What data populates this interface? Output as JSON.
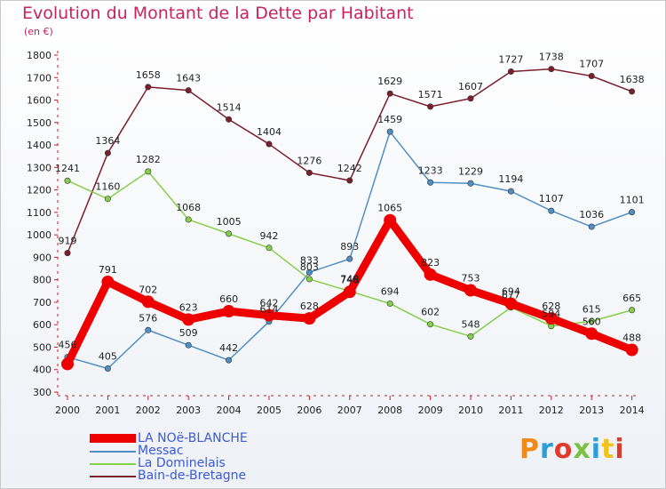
{
  "title": "Evolution du Montant de la Dette par Habitant",
  "unit": "(en €)",
  "logo": "Proxiti",
  "chart_data": {
    "type": "line",
    "title": "Evolution du Montant de la Dette par Habitant",
    "ylabel": "(en €)",
    "ylim": [
      300,
      1800
    ],
    "yticks": [
      300,
      400,
      500,
      600,
      700,
      800,
      900,
      1000,
      1100,
      1200,
      1300,
      1400,
      1500,
      1600,
      1700,
      1800
    ],
    "categories": [
      "2000",
      "2001",
      "2002",
      "2003",
      "2004",
      "2005",
      "2006",
      "2007",
      "2008",
      "2009",
      "2010",
      "2011",
      "2012",
      "2013",
      "2014"
    ],
    "grid": false,
    "legend_position": "bottom-left",
    "series": [
      {
        "name": "LA NOë-BLANCHE",
        "color": "#ee0000",
        "values": [
          425,
          791,
          702,
          623,
          660,
          642,
          628,
          746,
          1065,
          823,
          753,
          694,
          628,
          560,
          488
        ],
        "labels": [
          "",
          "791",
          "702",
          "623",
          "660",
          "642",
          "628",
          "746",
          "1065",
          "823",
          "753",
          "694",
          "628",
          "560",
          "488"
        ]
      },
      {
        "name": "Messac",
        "color": "#4f8fc4",
        "values": [
          456,
          405,
          576,
          509,
          442,
          614,
          833,
          893,
          1459,
          1233,
          1229,
          1194,
          1107,
          1036,
          1101
        ],
        "labels": [
          "456",
          "405",
          "576",
          "509",
          "442",
          "614",
          "833",
          "893",
          "1459",
          "1233",
          "1229",
          "1194",
          "1107",
          "1036",
          "1101"
        ]
      },
      {
        "name": "La Dominelais",
        "color": "#86cf4a",
        "values": [
          1241,
          1160,
          1282,
          1068,
          1005,
          942,
          803,
          749,
          694,
          602,
          548,
          677,
          594,
          615,
          665
        ],
        "labels": [
          "1241",
          "1160",
          "1282",
          "1068",
          "1005",
          "942",
          "803",
          "749",
          "694",
          "602",
          "548",
          "677",
          "594",
          "615",
          "665"
        ]
      },
      {
        "name": "Bain-de-Bretagne",
        "color": "#7b1f2a",
        "values": [
          919,
          1364,
          1658,
          1643,
          1514,
          1404,
          1276,
          1242,
          1629,
          1571,
          1607,
          1727,
          1738,
          1707,
          1638
        ],
        "labels": [
          "919",
          "1364",
          "1658",
          "1643",
          "1514",
          "1404",
          "1276",
          "1242",
          "1629",
          "1571",
          "1607",
          "1727",
          "1738",
          "1707",
          "1638"
        ]
      }
    ]
  }
}
